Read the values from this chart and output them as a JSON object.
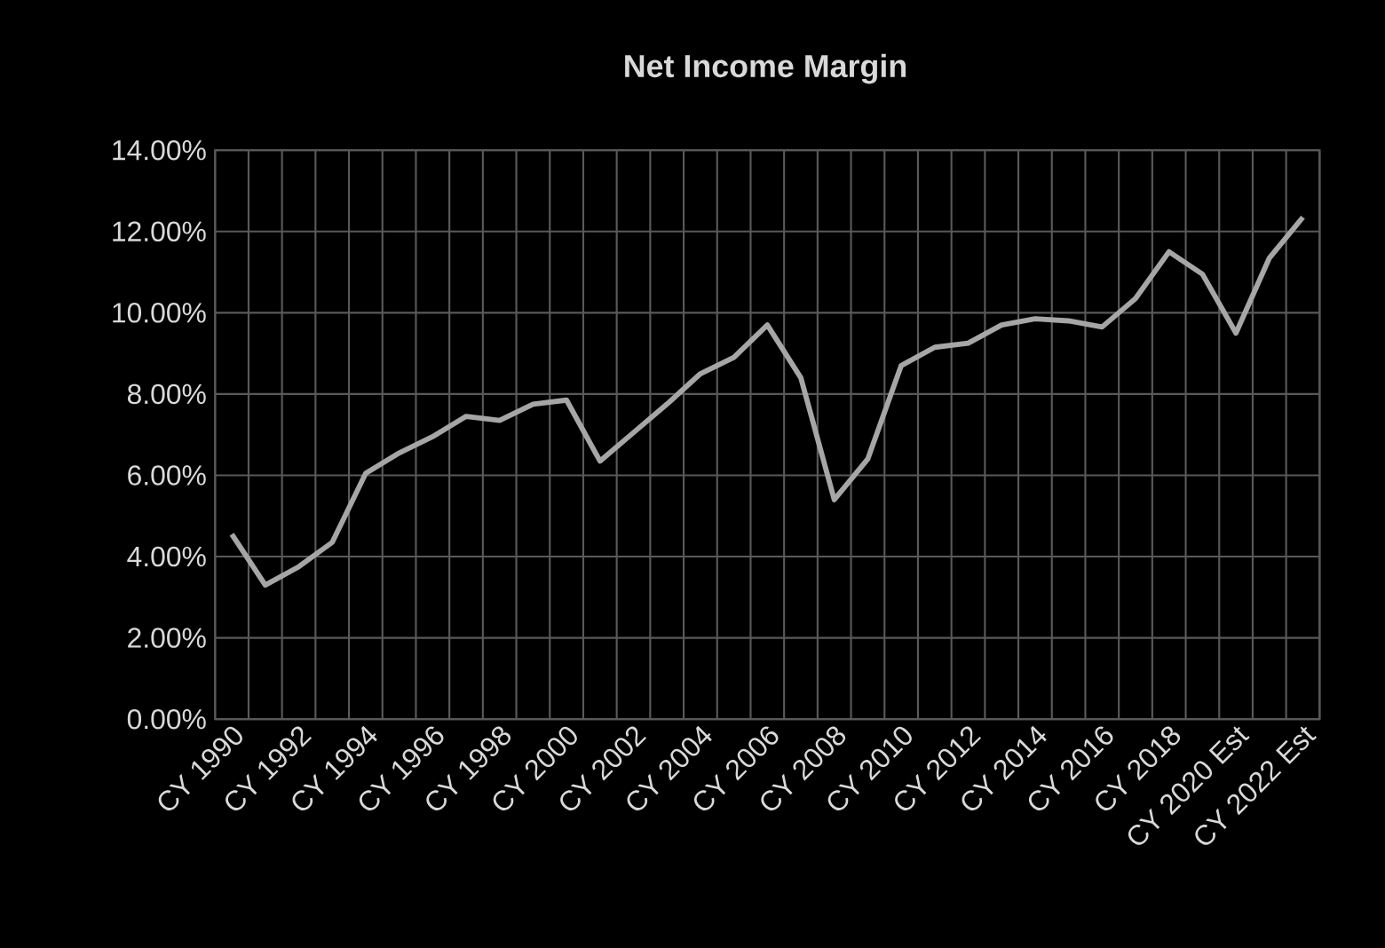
{
  "chart_data": {
    "type": "line",
    "title": "Net Income Margin",
    "categories": [
      "CY 1990",
      null,
      "CY 1992",
      null,
      "CY 1994",
      null,
      "CY 1996",
      null,
      "CY 1998",
      null,
      "CY 2000",
      null,
      "CY 2002",
      null,
      "CY 2004",
      null,
      "CY 2006",
      null,
      "CY 2008",
      null,
      "CY 2010",
      null,
      "CY 2012",
      null,
      "CY 2014",
      null,
      "CY 2016",
      null,
      "CY 2018",
      null,
      "CY 2020 Est",
      null,
      "CY 2022 Est"
    ],
    "series": [
      {
        "color": "#a6a6a6",
        "values": [
          4.55,
          3.3,
          3.75,
          4.35,
          6.05,
          6.55,
          6.95,
          7.45,
          7.35,
          7.75,
          7.85,
          6.35,
          7.05,
          7.75,
          8.5,
          8.9,
          9.7,
          8.4,
          5.4,
          6.4,
          8.7,
          9.15,
          9.25,
          9.7,
          9.85,
          9.8,
          9.65,
          10.35,
          11.5,
          10.95,
          9.5,
          11.35,
          12.35
        ]
      }
    ],
    "ylim": [
      0,
      14
    ],
    "yticks": [
      {
        "value": 0,
        "label": "0.00%"
      },
      {
        "value": 2,
        "label": "2.00%"
      },
      {
        "value": 4,
        "label": "4.00%"
      },
      {
        "value": 6,
        "label": "6.00%"
      },
      {
        "value": 8,
        "label": "8.00%"
      },
      {
        "value": 10,
        "label": "10.00%"
      },
      {
        "value": 12,
        "label": "12.00%"
      },
      {
        "value": 14,
        "label": "14.00%"
      }
    ],
    "grid": true,
    "legend": false,
    "marker": "none",
    "line_style": "solid"
  }
}
